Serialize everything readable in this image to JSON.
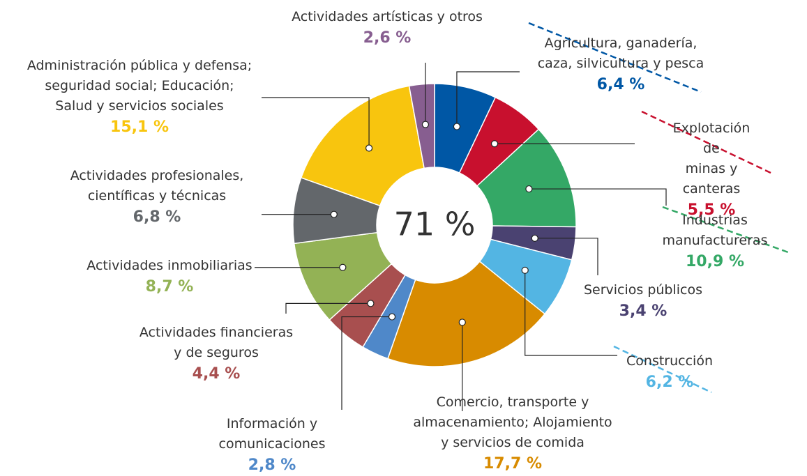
{
  "chart_data": {
    "type": "donut",
    "center_label": "71 %",
    "categories": [
      "Agricultura, ganadería,\ncaza, silvicultura y pesca",
      "Explotación de\nminas y canteras",
      "Industrias manufactureras",
      "Servicios públicos",
      "Construcción",
      "Comercio, transporte y\nalmacenamiento; Alojamiento\ny servicios de comida",
      "Información y\ncomunicaciones",
      "Actividades financieras\ny de seguros",
      "Actividades inmobiliarias",
      "Actividades profesionales,\ncientíficas y técnicas",
      "Administración pública y defensa;\nseguridad social; Educación;\nSalud y servicios sociales",
      "Actividades artísticas y otros"
    ],
    "values": [
      6.4,
      5.5,
      10.9,
      3.4,
      6.2,
      17.7,
      2.8,
      4.4,
      8.7,
      6.8,
      15.1,
      2.6
    ],
    "value_labels": [
      "6,4 %",
      "5,5 %",
      "10,9 %",
      "3,4 %",
      "6,2 %",
      "17,7 %",
      "2,8 %",
      "4,4 %",
      "8,7 %",
      "6,8 %",
      "15,1 %",
      "2,6 %"
    ],
    "colors": [
      "#0057a5",
      "#c8102e",
      "#34a866",
      "#4a4271",
      "#53b5e3",
      "#d88b00",
      "#4f88c9",
      "#a84f4f",
      "#93b255",
      "#63676b",
      "#f8c50e",
      "#875e90"
    ]
  }
}
